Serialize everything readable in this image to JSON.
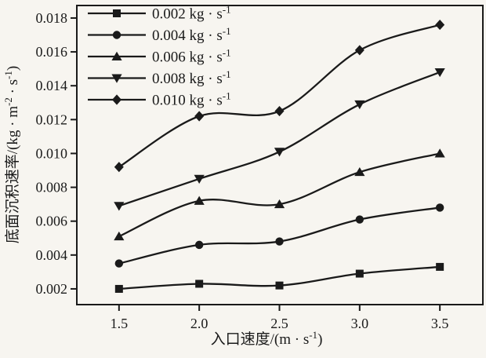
{
  "chart_data": {
    "type": "line",
    "x": [
      1.5,
      2.0,
      2.5,
      3.0,
      3.5
    ],
    "xticks": [
      "1.5",
      "2.0",
      "2.5",
      "3.0",
      "3.5"
    ],
    "yticks": [
      "0.002",
      "0.004",
      "0.006",
      "0.008",
      "0.010",
      "0.012",
      "0.014",
      "0.016",
      "0.018"
    ],
    "xlim": [
      1.237,
      3.768
    ],
    "ylim": [
      0.00107,
      0.01874
    ],
    "grid": false,
    "legend_position": "top-left",
    "xlabel_parts": [
      {
        "t": "入口速度/(m · s"
      },
      {
        "t": "-1",
        "sup": true
      },
      {
        "t": ")"
      }
    ],
    "ylabel_parts": [
      {
        "t": "底面沉积速率/(kg · m"
      },
      {
        "t": "-2",
        "sup": true
      },
      {
        "t": " · s"
      },
      {
        "t": "-1",
        "sup": true
      },
      {
        "t": ")"
      }
    ],
    "series": [
      {
        "label_base": "0.002 kg · s",
        "label_sup": "-1",
        "marker": "square",
        "values": [
          0.002,
          0.0023,
          0.0022,
          0.0029,
          0.0033
        ]
      },
      {
        "label_base": "0.004 kg · s",
        "label_sup": "-1",
        "marker": "circle",
        "values": [
          0.0035,
          0.0046,
          0.0048,
          0.0061,
          0.0068
        ]
      },
      {
        "label_base": "0.006 kg · s",
        "label_sup": "-1",
        "marker": "triangle-up",
        "values": [
          0.0051,
          0.0072,
          0.007,
          0.0089,
          0.01
        ]
      },
      {
        "label_base": "0.008 kg · s",
        "label_sup": "-1",
        "marker": "triangle-down",
        "values": [
          0.0069,
          0.0085,
          0.0101,
          0.0129,
          0.0148
        ]
      },
      {
        "label_base": "0.010 kg · s",
        "label_sup": "-1",
        "marker": "diamond",
        "values": [
          0.0092,
          0.0122,
          0.0125,
          0.0161,
          0.0176
        ]
      }
    ],
    "colors": {
      "line": "#1a1a1a",
      "text": "#1a1a1a",
      "background": "#f7f5f0"
    }
  }
}
